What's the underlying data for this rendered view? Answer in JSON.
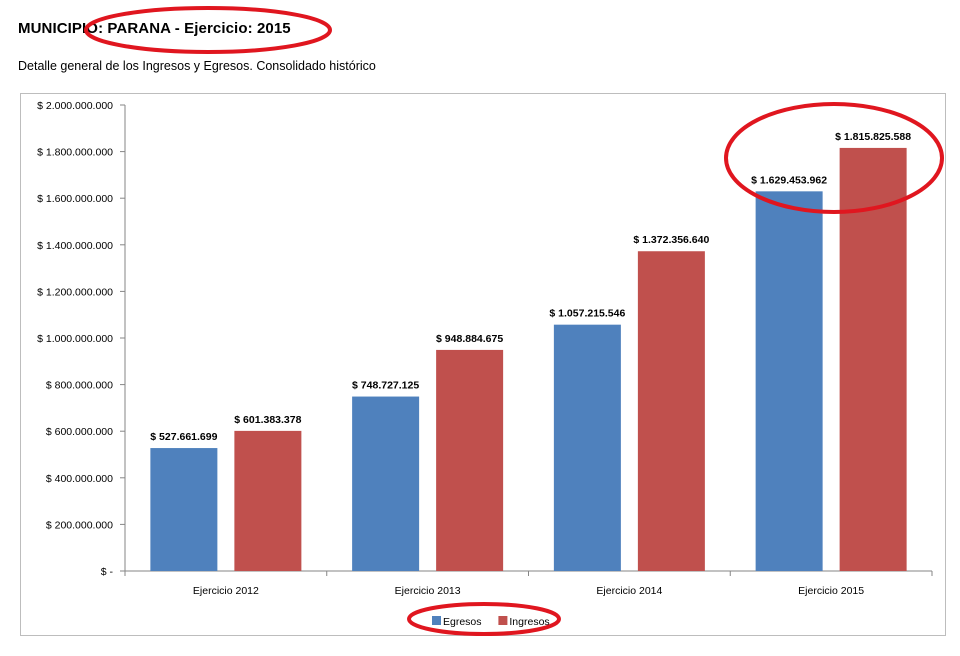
{
  "page": {
    "title": "MUNICIPIO: PARANA - Ejercicio: 2015",
    "subtitle": "Detalle general de los Ingresos y Egresos. Consolidado histórico"
  },
  "chart_data": {
    "type": "bar",
    "title": "",
    "xlabel": "",
    "ylabel": "",
    "categories": [
      "Ejercicio 2012",
      "Ejercicio 2013",
      "Ejercicio 2014",
      "Ejercicio 2015"
    ],
    "series": [
      {
        "name": "Egresos",
        "color": "#4F81BD",
        "values": [
          527661699,
          748727125,
          1057215546,
          1629453962
        ],
        "labels": [
          "$ 527.661.699",
          "$ 748.727.125",
          "$ 1.057.215.546",
          "$ 1.629.453.962"
        ]
      },
      {
        "name": "Ingresos",
        "color": "#C0504D",
        "values": [
          601383378,
          948884675,
          1372356640,
          1815825588
        ],
        "labels": [
          "$ 601.383.378",
          "$ 948.884.675",
          "$ 1.372.356.640",
          "$ 1.815.825.588"
        ]
      }
    ],
    "ylim": [
      0,
      2000000000
    ],
    "yticks": [
      0,
      200000000,
      400000000,
      600000000,
      800000000,
      1000000000,
      1200000000,
      1400000000,
      1600000000,
      1800000000,
      2000000000
    ],
    "ytick_labels": [
      "$ -",
      "$ 200.000.000",
      "$ 400.000.000",
      "$ 600.000.000",
      "$ 800.000.000",
      "$ 1.000.000.000",
      "$ 1.200.000.000",
      "$ 1.400.000.000",
      "$ 1.600.000.000",
      "$ 1.800.000.000",
      "$ 2.000.000.000"
    ],
    "grid": false,
    "legend": "bottom-center"
  },
  "annotations": {
    "highlight_color": "#E0161F"
  }
}
